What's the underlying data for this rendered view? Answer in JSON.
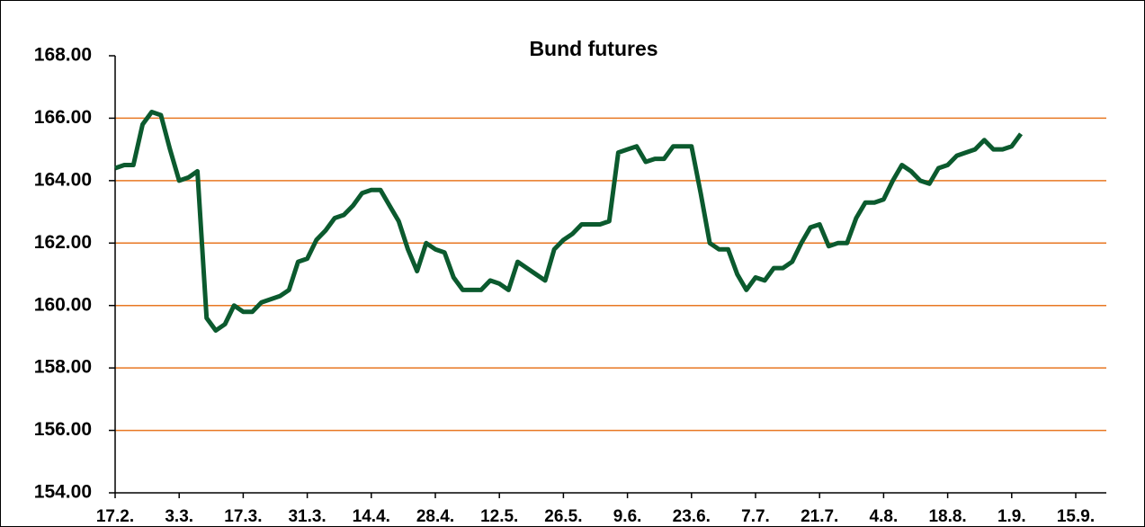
{
  "chart_data": {
    "type": "line",
    "title": "Bund futures",
    "categories": [
      "17.2.",
      null,
      null,
      null,
      null,
      null,
      null,
      "3.3.",
      null,
      null,
      null,
      null,
      null,
      null,
      "17.3.",
      null,
      null,
      null,
      null,
      null,
      null,
      "31.3.",
      null,
      null,
      null,
      null,
      null,
      null,
      "14.4.",
      null,
      null,
      null,
      null,
      null,
      null,
      "28.4.",
      null,
      null,
      null,
      null,
      null,
      null,
      "12.5.",
      null,
      null,
      null,
      null,
      null,
      null,
      "26.5.",
      null,
      null,
      null,
      null,
      null,
      null,
      "9.6.",
      null,
      null,
      null,
      null,
      null,
      null,
      "23.6.",
      null,
      null,
      null,
      null,
      null,
      null,
      "7.7.",
      null,
      null,
      null,
      null,
      null,
      null,
      "21.7.",
      null,
      null,
      null,
      null,
      null,
      null,
      "4.8.",
      null,
      null,
      null,
      null,
      null,
      null,
      "18.8.",
      null,
      null,
      null,
      null,
      null,
      null,
      "1.9.",
      null,
      null,
      null,
      null,
      null,
      null,
      "15.9."
    ],
    "series": [
      {
        "color": "#0b5a2e",
        "values": [
          164.4,
          164.5,
          164.5,
          165.8,
          166.2,
          166.1,
          165.0,
          164.0,
          164.1,
          164.3,
          159.6,
          159.2,
          159.4,
          160.0,
          159.8,
          159.8,
          160.1,
          160.2,
          160.3,
          160.5,
          161.4,
          161.5,
          162.1,
          162.4,
          162.8,
          162.9,
          163.2,
          163.6,
          163.7,
          163.7,
          163.2,
          162.7,
          161.8,
          161.1,
          162.0,
          161.8,
          161.7,
          160.9,
          160.5,
          160.5,
          160.5,
          160.8,
          160.7,
          160.5,
          161.4,
          161.2,
          161.0,
          160.8,
          161.8,
          162.1,
          162.3,
          162.6,
          162.6,
          162.6,
          162.7,
          164.9,
          165.0,
          165.1,
          164.6,
          164.7,
          164.7,
          165.1,
          165.1,
          165.1,
          163.6,
          162.0,
          161.8,
          161.8,
          161.0,
          160.5,
          160.9,
          160.8,
          161.2,
          161.2,
          161.4,
          162.0,
          162.5,
          162.6,
          161.9,
          162.0,
          162.0,
          162.8,
          163.3,
          163.3,
          163.4,
          164.0,
          164.5,
          164.3,
          164.0,
          163.9,
          164.4,
          164.5,
          164.8,
          164.9,
          165.0,
          165.3,
          165.0,
          165.0,
          165.1,
          165.5,
          null,
          null,
          null,
          null,
          null,
          null
        ]
      }
    ],
    "ylim": [
      154,
      168
    ],
    "yticks": [
      {
        "value": 154,
        "label": "154.00"
      },
      {
        "value": 156,
        "label": "156.00"
      },
      {
        "value": 158,
        "label": "158.00"
      },
      {
        "value": 160,
        "label": "160.00"
      },
      {
        "value": 162,
        "label": "162.00"
      },
      {
        "value": 164,
        "label": "164.00"
      },
      {
        "value": 166,
        "label": "166.00"
      },
      {
        "value": 168,
        "label": "168.00"
      }
    ],
    "grid": true,
    "grid_color": "#e87722"
  }
}
